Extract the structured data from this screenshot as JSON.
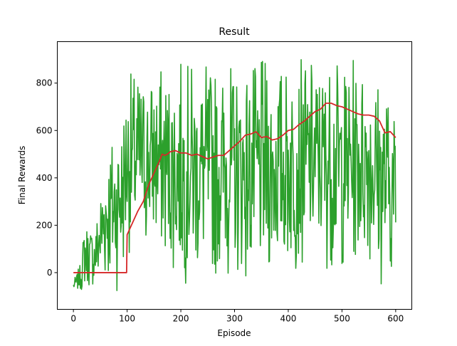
{
  "chart_data": {
    "type": "line",
    "title": "Result",
    "xlabel": "Episode",
    "ylabel": "Final Rewards",
    "xlim": [
      -30,
      630
    ],
    "ylim": [
      -155,
      975
    ],
    "xticks": [
      0,
      100,
      200,
      300,
      400,
      500,
      600
    ],
    "yticks": [
      0,
      200,
      400,
      600,
      800
    ],
    "grid": false,
    "legend": null,
    "series": [
      {
        "role": "raw",
        "color": "#2ca02c",
        "seed": 7,
        "x_range": [
          0,
          600
        ],
        "envelope": [
          {
            "x": 0,
            "lo": -75,
            "hi": -35
          },
          {
            "x": 15,
            "lo": -80,
            "hi": 50
          },
          {
            "x": 20,
            "lo": -70,
            "hi": 230
          },
          {
            "x": 40,
            "lo": -70,
            "hi": 200
          },
          {
            "x": 60,
            "lo": -80,
            "hi": 560
          },
          {
            "x": 75,
            "lo": -90,
            "hi": 630
          },
          {
            "x": 90,
            "lo": -60,
            "hi": 700
          },
          {
            "x": 100,
            "lo": 80,
            "hi": 860
          },
          {
            "x": 150,
            "lo": 80,
            "hi": 880
          },
          {
            "x": 200,
            "lo": -50,
            "hi": 910
          },
          {
            "x": 300,
            "lo": -30,
            "hi": 900
          },
          {
            "x": 330,
            "lo": -60,
            "hi": 900
          },
          {
            "x": 400,
            "lo": -10,
            "hi": 910
          },
          {
            "x": 450,
            "lo": 40,
            "hi": 920
          },
          {
            "x": 500,
            "lo": -20,
            "hi": 920
          },
          {
            "x": 550,
            "lo": 50,
            "hi": 910
          },
          {
            "x": 570,
            "lo": -80,
            "hi": 880
          },
          {
            "x": 600,
            "lo": -20,
            "hi": 720
          }
        ]
      },
      {
        "role": "moving-average",
        "color": "#d62728",
        "points": [
          [
            0,
            0
          ],
          [
            99,
            0
          ],
          [
            100,
            160
          ],
          [
            110,
            210
          ],
          [
            120,
            260
          ],
          [
            130,
            300
          ],
          [
            140,
            370
          ],
          [
            150,
            420
          ],
          [
            160,
            470
          ],
          [
            165,
            500
          ],
          [
            170,
            495
          ],
          [
            175,
            500
          ],
          [
            180,
            510
          ],
          [
            190,
            515
          ],
          [
            200,
            505
          ],
          [
            210,
            505
          ],
          [
            220,
            495
          ],
          [
            230,
            500
          ],
          [
            240,
            490
          ],
          [
            250,
            480
          ],
          [
            260,
            488
          ],
          [
            270,
            495
          ],
          [
            280,
            495
          ],
          [
            290,
            515
          ],
          [
            300,
            535
          ],
          [
            310,
            555
          ],
          [
            320,
            580
          ],
          [
            330,
            585
          ],
          [
            340,
            595
          ],
          [
            350,
            570
          ],
          [
            360,
            575
          ],
          [
            370,
            560
          ],
          [
            380,
            565
          ],
          [
            390,
            580
          ],
          [
            400,
            600
          ],
          [
            410,
            605
          ],
          [
            420,
            625
          ],
          [
            430,
            640
          ],
          [
            440,
            660
          ],
          [
            450,
            680
          ],
          [
            460,
            690
          ],
          [
            470,
            715
          ],
          [
            480,
            715
          ],
          [
            490,
            705
          ],
          [
            500,
            700
          ],
          [
            510,
            690
          ],
          [
            520,
            680
          ],
          [
            530,
            670
          ],
          [
            540,
            665
          ],
          [
            550,
            665
          ],
          [
            560,
            660
          ],
          [
            570,
            640
          ],
          [
            580,
            590
          ],
          [
            590,
            595
          ],
          [
            600,
            570
          ]
        ]
      }
    ]
  }
}
